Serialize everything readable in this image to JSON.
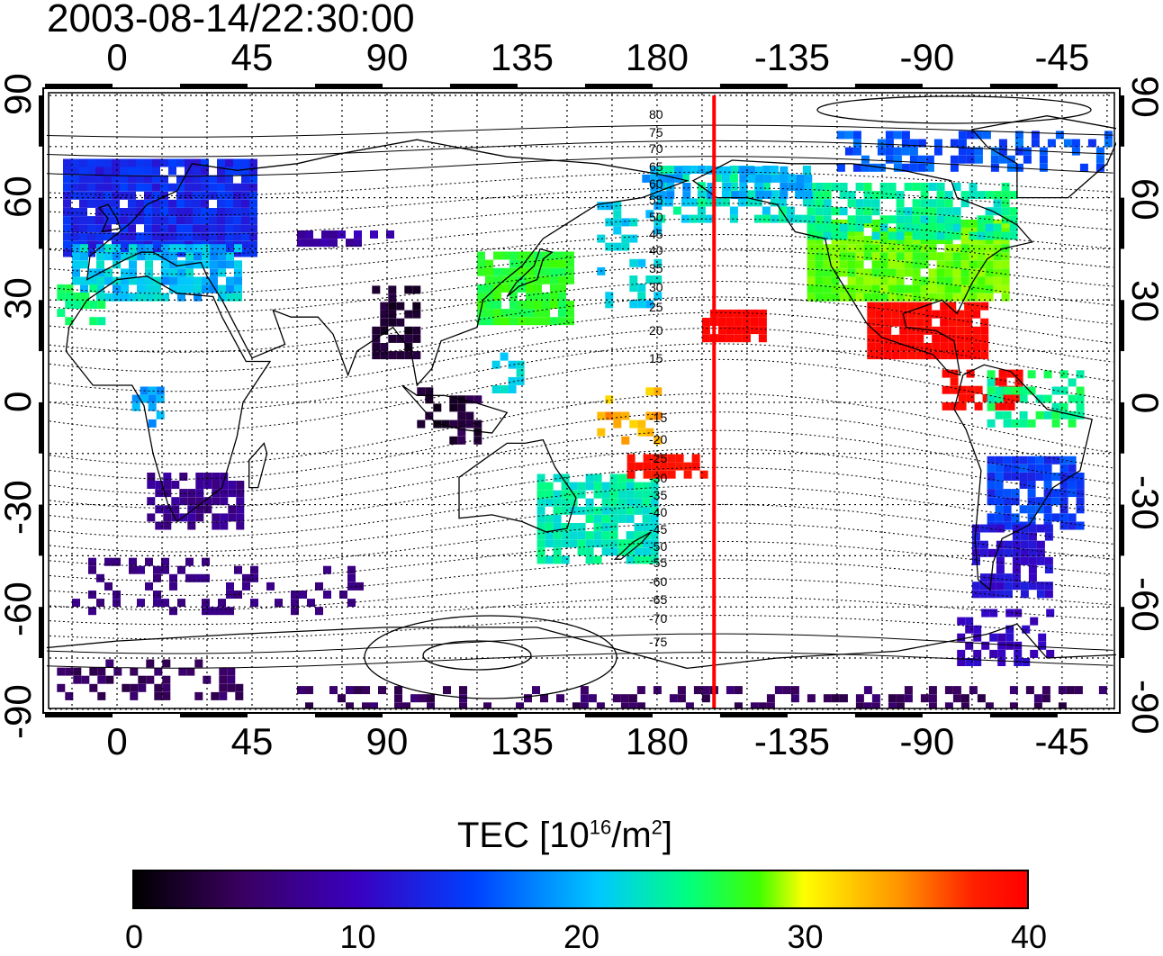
{
  "timestamp": "2003-08-14/22:30:00",
  "axes": {
    "lon_ticks_labels": [
      "0",
      "45",
      "90",
      "135",
      "180",
      "-135",
      "-90",
      "-45"
    ],
    "lat_ticks_labels": [
      "90",
      "60",
      "30",
      "0",
      "-30",
      "-60",
      "-90"
    ]
  },
  "contour_labels": {
    "north": [
      "80",
      "75",
      "70",
      "65",
      "60",
      "55",
      "50",
      "45",
      "40",
      "35",
      "30",
      "25",
      "20",
      "15"
    ],
    "south": [
      "-15",
      "-20",
      "-25",
      "-30",
      "-35",
      "-40",
      "-45",
      "-50",
      "-55",
      "-60",
      "-65",
      "-70",
      "-75"
    ]
  },
  "meridian_marker": {
    "longitude": -161,
    "color": "#ff0000"
  },
  "colorbar": {
    "title": "TEC  [10",
    "title_exp": "16",
    "title_unit": "/m",
    "title_unit_exp": "2",
    "title_close": "]",
    "ticks": [
      "0",
      "10",
      "20",
      "30",
      "40"
    ],
    "range": [
      0,
      40
    ]
  },
  "colors": {
    "land_outline": "#000000",
    "grid": "#000000",
    "marker": "#ff0000"
  }
}
